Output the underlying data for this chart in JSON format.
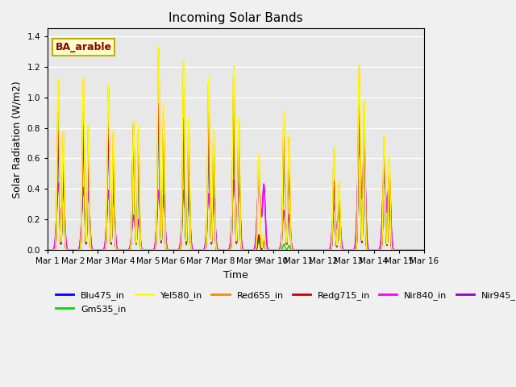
{
  "title": "Incoming Solar Bands",
  "xlabel": "Time",
  "ylabel": "Solar Radiation (W/m2)",
  "annotation": "BA_arable",
  "ylim": [
    0,
    1.45
  ],
  "yticks": [
    0.0,
    0.2,
    0.4,
    0.6,
    0.8,
    1.0,
    1.2,
    1.4
  ],
  "date_labels": [
    "Mar 1",
    "Mar 2",
    "Mar 3",
    "Mar 4",
    "Mar 5",
    "Mar 6",
    "Mar 7",
    "Mar 8",
    "Mar 9",
    "Mar 10",
    "Mar 11",
    "Mar 12",
    "Mar 13",
    "Mar 14",
    "Mar 15",
    "Mar 16"
  ],
  "series": {
    "Blu475_in": {
      "color": "#0000ff",
      "lw": 1.0
    },
    "Gm535_in": {
      "color": "#00dd00",
      "lw": 1.0
    },
    "Yel580_in": {
      "color": "#ffff00",
      "lw": 1.0
    },
    "Red655_in": {
      "color": "#ff8800",
      "lw": 1.0
    },
    "Redg715_in": {
      "color": "#cc0000",
      "lw": 1.0
    },
    "Nir840_in": {
      "color": "#ff00ff",
      "lw": 1.0
    },
    "Nir945_in": {
      "color": "#9900cc",
      "lw": 1.0
    }
  },
  "day_data": {
    "Yel580_in": {
      "peaks": [
        1.12,
        1.13,
        1.08,
        0.85,
        1.33,
        1.24,
        1.13,
        1.21,
        0.63,
        0.91,
        0.0,
        0.67,
        1.21,
        0.75
      ],
      "sub": [
        0.78,
        0.82,
        0.79,
        0.82,
        0.96,
        0.86,
        0.79,
        0.87,
        0.1,
        0.75,
        0.0,
        0.45,
        0.98,
        0.62
      ]
    },
    "Red655_in": {
      "peaks": [
        1.11,
        1.12,
        1.07,
        0.84,
        1.32,
        1.24,
        1.12,
        1.2,
        0.62,
        0.9,
        0.0,
        0.66,
        1.2,
        0.74
      ],
      "sub": [
        0.77,
        0.81,
        0.78,
        0.81,
        0.95,
        0.85,
        0.78,
        0.86,
        0.09,
        0.74,
        0.0,
        0.44,
        0.97,
        0.61
      ]
    },
    "Redg715_in": {
      "peaks": [
        0.78,
        0.82,
        0.79,
        0.82,
        0.96,
        0.86,
        0.79,
        0.87,
        0.1,
        0.75,
        0.0,
        0.45,
        0.98,
        0.62
      ],
      "sub": [
        0.6,
        0.65,
        0.62,
        0.65,
        0.78,
        0.68,
        0.62,
        0.7,
        0.07,
        0.58,
        0.0,
        0.35,
        0.8,
        0.48
      ]
    },
    "Gm535_in": {
      "peaks": [
        0.95,
        0.97,
        0.91,
        0.7,
        0.92,
        0.66,
        0.9,
        1.04,
        0.07,
        0.04,
        0.0,
        0.46,
        1.01,
        0.62
      ],
      "sub": [
        0.7,
        0.72,
        0.68,
        0.52,
        0.72,
        0.48,
        0.68,
        0.8,
        0.05,
        0.03,
        0.0,
        0.35,
        0.78,
        0.48
      ]
    },
    "Blu475_in": {
      "peaks": [
        0.75,
        0.78,
        0.75,
        0.78,
        0.93,
        0.82,
        0.77,
        0.84,
        0.08,
        0.72,
        0.0,
        0.43,
        0.95,
        0.6
      ],
      "sub": [
        0.58,
        0.62,
        0.58,
        0.62,
        0.75,
        0.65,
        0.6,
        0.67,
        0.06,
        0.56,
        0.0,
        0.33,
        0.78,
        0.47
      ]
    },
    "Nir840_in": {
      "peaks": [
        0.44,
        0.41,
        0.39,
        0.23,
        0.39,
        0.39,
        0.37,
        0.46,
        0.46,
        0.26,
        0.0,
        0.3,
        0.7,
        0.52
      ],
      "sub": [
        0.4,
        0.38,
        0.36,
        0.2,
        0.36,
        0.36,
        0.34,
        0.43,
        0.43,
        0.23,
        0.0,
        0.27,
        0.67,
        0.49
      ]
    },
    "Nir945_in": {
      "peaks": [
        0.43,
        0.4,
        0.38,
        0.22,
        0.38,
        0.38,
        0.36,
        0.45,
        0.45,
        0.25,
        0.0,
        0.29,
        0.69,
        0.51
      ],
      "sub": [
        0.39,
        0.37,
        0.35,
        0.19,
        0.35,
        0.35,
        0.33,
        0.42,
        0.42,
        0.22,
        0.0,
        0.26,
        0.66,
        0.48
      ]
    }
  },
  "background_color": "#e8e8e8",
  "fig_bg": "#f0f0f0"
}
